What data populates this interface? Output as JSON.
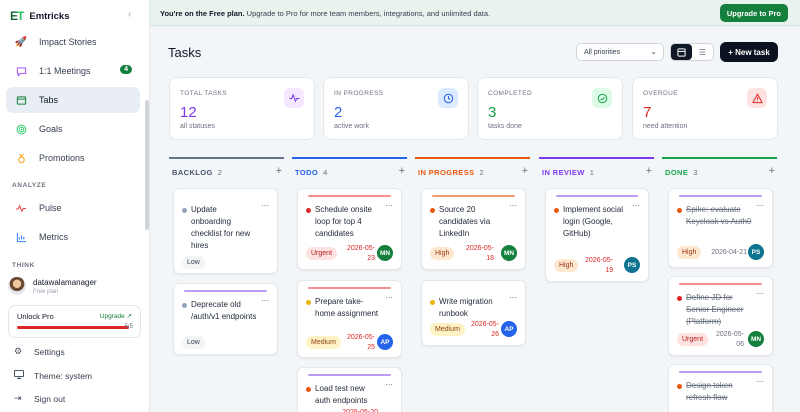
{
  "brand": {
    "logo": "ET",
    "name": "Emtricks"
  },
  "sidebar": {
    "items": [
      {
        "label": "Impact Stories",
        "icon": "rocket-icon"
      },
      {
        "label": "1:1 Meetings",
        "icon": "chat-icon",
        "badge": "4"
      },
      {
        "label": "Tabs",
        "icon": "folder-icon"
      },
      {
        "label": "Goals",
        "icon": "target-icon"
      },
      {
        "label": "Promotions",
        "icon": "medal-icon"
      }
    ],
    "analyze_label": "ANALYZE",
    "analyze_items": [
      {
        "label": "Pulse",
        "icon": "pulse-icon"
      },
      {
        "label": "Metrics",
        "icon": "chart-icon"
      }
    ],
    "think_label": "THINK",
    "user": {
      "name": "datawalamanager",
      "plan": "Free plan"
    },
    "unlock": {
      "title": "Unlock Pro",
      "action": "Upgrade ↗",
      "count": "5/5",
      "progress": 1.0
    },
    "footer": [
      {
        "label": "Settings",
        "icon": "gear-icon"
      },
      {
        "label": "Theme: system",
        "icon": "monitor-icon"
      },
      {
        "label": "Sign out",
        "icon": "sign-out-icon"
      }
    ]
  },
  "banner": {
    "lead": "You're on the Free plan.",
    "message": "Upgrade to Pro for more team members, integrations, and unlimited data.",
    "button": "Upgrade to Pro"
  },
  "header": {
    "title": "Tasks",
    "priority_select": "All priorities",
    "new_task": "+ New task"
  },
  "stats": [
    {
      "label": "TOTAL TASKS",
      "value": "12",
      "sub": "all statuses",
      "color": "#7c3aed",
      "icon": "activity-icon"
    },
    {
      "label": "IN PROGRESS",
      "value": "2",
      "sub": "active work",
      "color": "#2563eb",
      "icon": "clock-icon"
    },
    {
      "label": "COMPLETED",
      "value": "3",
      "sub": "tasks done",
      "color": "#16a34a",
      "icon": "check-circle-icon"
    },
    {
      "label": "OVERDUE",
      "value": "7",
      "sub": "need attention",
      "color": "#dc2626",
      "icon": "warning-icon"
    }
  ],
  "columns": [
    {
      "name": "BACKLOG",
      "count": "2",
      "color": "#64748b"
    },
    {
      "name": "TODO",
      "count": "4",
      "color": "#2563eb"
    },
    {
      "name": "IN PROGRESS",
      "count": "2",
      "color": "#ea580c"
    },
    {
      "name": "IN REVIEW",
      "count": "1",
      "color": "#7c3aed"
    },
    {
      "name": "DONE",
      "count": "3",
      "color": "#16a34a"
    }
  ],
  "cards": {
    "backlog": [
      {
        "title": "Update onboarding checklist for new hires",
        "priority": "Low"
      },
      {
        "title": "Deprecate old /auth/v1 endpoints",
        "priority": "Low"
      }
    ],
    "todo": [
      {
        "title": "Schedule onsite loop for top 4 candidates",
        "priority": "Urgent",
        "due": "2026-05-23",
        "assignee": "MN"
      },
      {
        "title": "Prepare take-home assignment",
        "priority": "Medium",
        "due": "2026-05-25",
        "assignee": "AP"
      },
      {
        "title": "Load test new auth endpoints",
        "due": "2026-05-20"
      }
    ],
    "in_progress": [
      {
        "title": "Source 20 candidates via LinkedIn",
        "priority": "High",
        "due": "2026-05-18",
        "assignee": "MN"
      },
      {
        "title": "Write migration runbook",
        "priority": "Medium",
        "due": "2026-05-26",
        "assignee": "AP"
      }
    ],
    "in_review": [
      {
        "title": "Implement social login (Google, GitHub)",
        "priority": "High",
        "due": "2026-05-19",
        "assignee": "PS"
      }
    ],
    "done": [
      {
        "title": "Spike: evaluate Keycloak vs Auth0",
        "priority": "High",
        "due": "2026-04-21",
        "assignee": "PS"
      },
      {
        "title": "Define JD for Senior Engineer (Platform)",
        "priority": "Urgent",
        "due": "2026-05-06",
        "assignee": "MN"
      },
      {
        "title": "Design token refresh flow"
      }
    ]
  },
  "colors": {
    "brand_green": "#15803d",
    "avatar_MN": "#15803d",
    "avatar_AP": "#2563eb",
    "avatar_PS": "#0e7490"
  }
}
